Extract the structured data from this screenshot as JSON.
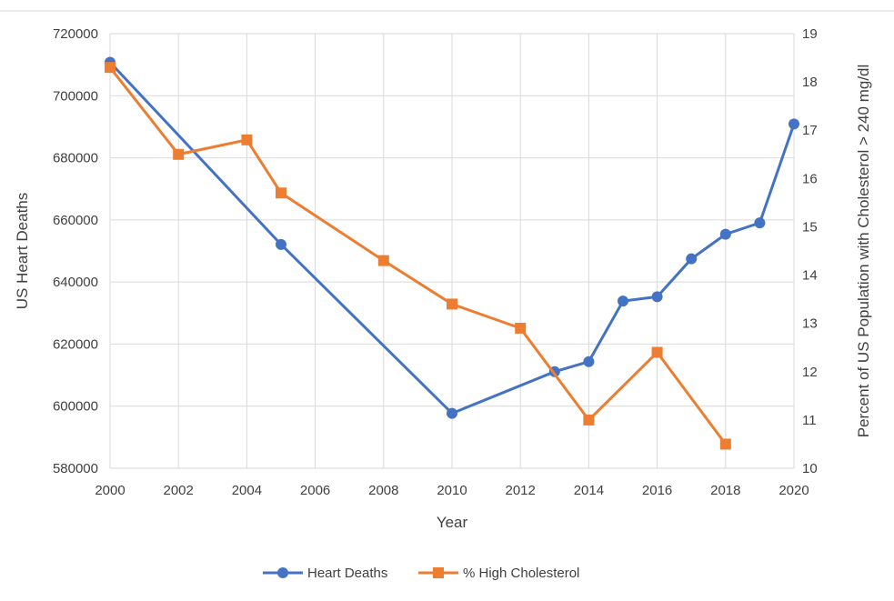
{
  "chart_data": {
    "type": "line",
    "title": "",
    "xlabel": "Year",
    "ylabel_left": "US Heart Deaths",
    "ylabel_right": "Percent of US Population with Cholesterol > 240 mg/dl",
    "xlim": [
      2000,
      2020
    ],
    "ylim_left": [
      580000,
      720000
    ],
    "ylim_right": [
      10,
      19
    ],
    "x_ticks": [
      "2000",
      "2002",
      "2004",
      "2006",
      "2008",
      "2010",
      "2012",
      "2014",
      "2016",
      "2018",
      "2020"
    ],
    "y_left_ticks": [
      "580000",
      "600000",
      "620000",
      "640000",
      "660000",
      "680000",
      "700000",
      "720000"
    ],
    "y_right_ticks": [
      "10",
      "11",
      "12",
      "13",
      "14",
      "15",
      "16",
      "17",
      "18",
      "19"
    ],
    "grid": true,
    "legend_position": "bottom",
    "series": [
      {
        "name": "Heart Deaths",
        "axis": "left",
        "color": "#4472C4",
        "marker": "circle",
        "x": [
          2000,
          2005,
          2010,
          2013,
          2014,
          2015,
          2016,
          2017,
          2018,
          2019,
          2020
        ],
        "y": [
          710760,
          652091,
          597689,
          611105,
          614348,
          633842,
          635260,
          647457,
          655381,
          659041,
          690882
        ]
      },
      {
        "name": "% High Cholesterol",
        "axis": "right",
        "color": "#ED7D31",
        "marker": "square",
        "x": [
          2000,
          2002,
          2004,
          2005,
          2008,
          2010,
          2012,
          2014,
          2016,
          2018
        ],
        "y": [
          18.3,
          16.5,
          16.8,
          15.7,
          14.3,
          13.4,
          12.9,
          11.0,
          12.4,
          10.5
        ]
      }
    ]
  }
}
